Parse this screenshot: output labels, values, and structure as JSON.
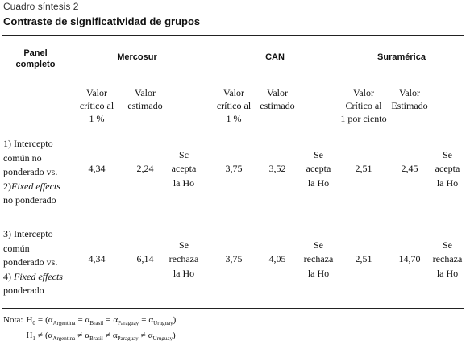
{
  "header": {
    "caption": "Cuadro síntesis 2",
    "title": "Contraste de significatividad de grupos"
  },
  "table": {
    "corner": [
      "Panel",
      "completo"
    ],
    "groups": [
      "Mercosur",
      "CAN",
      "Suramérica"
    ],
    "subheaders": [
      [
        [
          "Valor",
          "crítico al",
          "1 %"
        ],
        [
          "Valor",
          "estimado"
        ]
      ],
      [
        [
          "Valor",
          "crítico al",
          "1 %"
        ],
        [
          "Valor",
          "estimado"
        ]
      ],
      [
        [
          "Valor",
          "Crítico al",
          "1 por ciento"
        ],
        [
          "Valor",
          "Estimado"
        ]
      ]
    ],
    "rows": [
      {
        "label": [
          "1) Intercepto",
          "común no",
          "ponderado vs.",
          {
            "pre": "2)",
            "em": "Fixed effects"
          },
          "no ponderado"
        ],
        "cells": [
          [
            "4,34"
          ],
          [
            "2,24"
          ],
          [
            "Sc",
            "acepta",
            "la Ho"
          ],
          [
            "3,75"
          ],
          [
            "3,52"
          ],
          [
            "Se",
            "acepta",
            "la Ho"
          ],
          [
            "2,51"
          ],
          [
            "2,45"
          ],
          [
            "Se",
            "acepta",
            "la Ho"
          ]
        ]
      },
      {
        "label": [
          "3) Intercepto",
          "común",
          "ponderado vs.",
          {
            "pre": "4) ",
            "em": "Fixed effects"
          },
          "ponderado"
        ],
        "cells": [
          [
            "4,34"
          ],
          [
            "6,14"
          ],
          [
            "Se",
            "rechaza",
            "la Ho"
          ],
          [
            "3,75"
          ],
          [
            "4,05"
          ],
          [
            "Se",
            "rechaza",
            "la Ho"
          ],
          [
            "2,51"
          ],
          [
            "14,70"
          ],
          [
            "Se",
            "rechaza",
            "la Ho"
          ]
        ]
      }
    ]
  },
  "note": {
    "label": "Nota:",
    "alpha": "α",
    "hypotheses": [
      {
        "symbol": "H",
        "sub": "0",
        "op": "=",
        "terms": [
          "Argentina",
          "Brasil",
          "Paraguay",
          "Uruguay"
        ]
      },
      {
        "symbol": "H",
        "sub": "1",
        "op": "≠",
        "terms": [
          "Argentina",
          "Brasil",
          "Paraguay",
          "Uruguay"
        ]
      }
    ]
  }
}
